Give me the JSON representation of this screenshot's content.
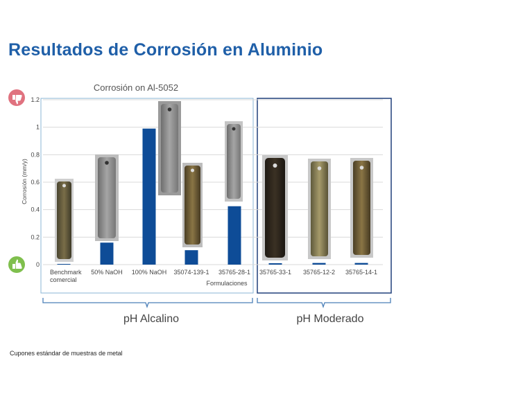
{
  "page": {
    "title": "Resultados de Corrosión en Aluminio",
    "footnote": "Cupones estándar de muestras de metal"
  },
  "legend_icons": {
    "bad": "thumbs-down-icon",
    "good": "thumbs-up-icon",
    "bad_color": "#e0727f",
    "good_color": "#7fbf4d"
  },
  "chart_data": {
    "type": "bar",
    "title": "Corrosión on Al-5052",
    "ylabel": "Corrosión (mm/y)",
    "xlabel": "Formulaciones",
    "ylim": [
      0,
      1.2
    ],
    "yticks": [
      0,
      0.2,
      0.4,
      0.6,
      0.8,
      1,
      1.2
    ],
    "grid": true,
    "bar_color": "#0e4c97",
    "categories": [
      "Benchmark comercial",
      "50% NaOH",
      "100% NaOH",
      "35074-139-1",
      "35765-28-1",
      "35765-33-1",
      "35765-12-2",
      "35765-14-1"
    ],
    "category_lines": [
      [
        "Benchmark",
        "comercial"
      ],
      [
        "50% NaOH"
      ],
      [
        "100% NaOH"
      ],
      [
        "35074-139-1"
      ],
      [
        "35765-28-1"
      ],
      [
        "35765-33-1"
      ],
      [
        "35765-12-2"
      ],
      [
        "35765-14-1"
      ]
    ],
    "values": [
      0.005,
      0.16,
      0.99,
      0.105,
      0.425,
      0.01,
      0.012,
      0.012
    ],
    "groups": [
      {
        "label": "pH Alcalino",
        "from": 0,
        "to": 4
      },
      {
        "label": "pH Moderado",
        "from": 5,
        "to": 7
      }
    ]
  }
}
